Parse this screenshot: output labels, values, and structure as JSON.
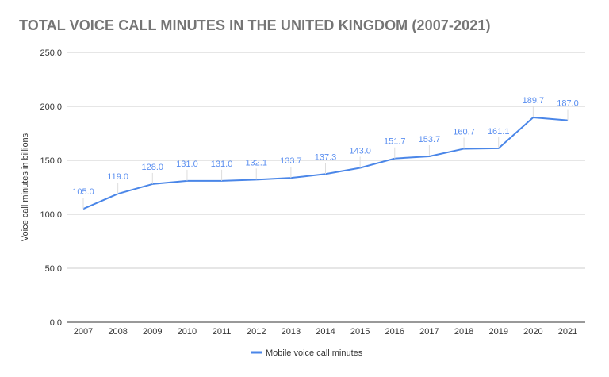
{
  "chart_data": {
    "type": "line",
    "title": "TOTAL VOICE CALL MINUTES IN THE UNITED KINGDOM (2007-2021)",
    "xlabel": "",
    "ylabel": "Voice call minutes in billions",
    "categories": [
      "2007",
      "2008",
      "2009",
      "2010",
      "2011",
      "2012",
      "2013",
      "2014",
      "2015",
      "2016",
      "2017",
      "2018",
      "2019",
      "2020",
      "2021"
    ],
    "series": [
      {
        "name": "Mobile voice call minutes",
        "color": "#4a86e8",
        "values": [
          105.0,
          119.0,
          128.0,
          131.0,
          131.0,
          132.1,
          133.7,
          137.3,
          143.0,
          151.7,
          153.7,
          160.7,
          161.1,
          189.7,
          187.0
        ],
        "labels": [
          "105.0",
          "119.0",
          "128.0",
          "131.0",
          "131.0",
          "132.1",
          "133.7",
          "137.3",
          "143.0",
          "151.7",
          "153.7",
          "160.7",
          "161.1",
          "189.7",
          "187.0"
        ]
      }
    ],
    "ylim": [
      0,
      250
    ],
    "yticks": [
      "0.0",
      "50.0",
      "100.0",
      "150.0",
      "200.0",
      "250.0"
    ],
    "grid": true,
    "legend": "bottom"
  }
}
